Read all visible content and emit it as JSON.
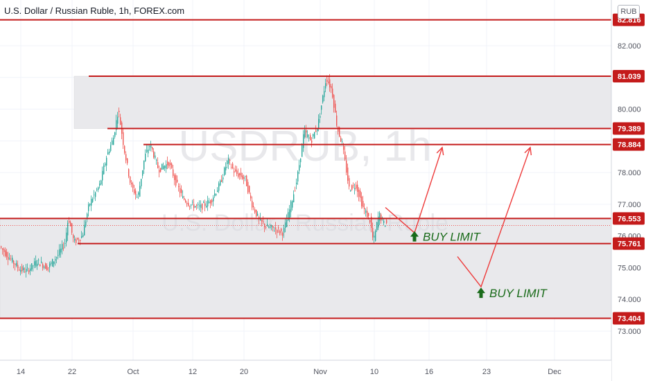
{
  "header": {
    "title": "U.S. Dollar / Russian Ruble, 1h, FOREX.com",
    "currency": "RUB"
  },
  "watermark": {
    "symbol": "USDRUB, 1h",
    "name": "U.S. Dollar / Russian Ruble"
  },
  "colors": {
    "level_line": "#c41b1b",
    "level_label_bg": "#c41b1b",
    "zone_fill": "#e9e9ec",
    "candle_up": "#26a69a",
    "candle_down": "#ef5350",
    "arrow": "#ee3a3a",
    "buy_label": "#1a6b1a",
    "grid": "#f0f3fa",
    "axis_text": "#50535e"
  },
  "chart_data": {
    "type": "candlestick",
    "symbol": "USDRUB",
    "timeframe": "1h",
    "source": "FOREX.com",
    "y_axis": {
      "ticks": [
        "82.000",
        "81.000",
        "80.000",
        "79.000",
        "78.000",
        "77.000",
        "76.000",
        "75.000",
        "74.000",
        "73.000"
      ],
      "range": [
        72.0,
        83.0
      ]
    },
    "x_axis": {
      "ticks": [
        "14",
        "22",
        "Oct",
        "12",
        "20",
        "Nov",
        "10",
        "16",
        "23",
        "Dec"
      ]
    },
    "levels": [
      {
        "value": "82.816",
        "label": "82.816"
      },
      {
        "value": "81.039",
        "label": "81.039"
      },
      {
        "value": "79.389",
        "label": "79.389"
      },
      {
        "value": "78.884",
        "label": "78.884"
      },
      {
        "value": "76.553",
        "label": "76.553"
      },
      {
        "value": "75.761",
        "label": "75.761"
      },
      {
        "value": "73.404",
        "label": "73.404"
      }
    ],
    "zones": [
      {
        "from": 79.389,
        "to": 81.039
      },
      {
        "from": 73.404,
        "to": 76.553
      }
    ],
    "price_series_trace": [
      [
        0,
        75.7
      ],
      [
        15,
        75.3
      ],
      [
        30,
        74.95
      ],
      [
        40,
        74.9
      ],
      [
        55,
        75.2
      ],
      [
        70,
        75.0
      ],
      [
        85,
        75.4
      ],
      [
        95,
        75.8
      ],
      [
        100,
        76.6
      ],
      [
        108,
        75.8
      ],
      [
        120,
        76.0
      ],
      [
        130,
        77.0
      ],
      [
        145,
        77.6
      ],
      [
        155,
        78.5
      ],
      [
        165,
        79.1
      ],
      [
        172,
        80.0
      ],
      [
        180,
        78.8
      ],
      [
        190,
        77.6
      ],
      [
        200,
        77.2
      ],
      [
        210,
        78.5
      ],
      [
        218,
        78.9
      ],
      [
        230,
        78.1
      ],
      [
        245,
        78.3
      ],
      [
        255,
        77.7
      ],
      [
        265,
        77.2
      ],
      [
        275,
        77.0
      ],
      [
        290,
        76.9
      ],
      [
        305,
        77.1
      ],
      [
        318,
        77.6
      ],
      [
        330,
        78.4
      ],
      [
        340,
        78.0
      ],
      [
        355,
        77.8
      ],
      [
        365,
        77.0
      ],
      [
        375,
        76.5
      ],
      [
        385,
        76.3
      ],
      [
        400,
        76.2
      ],
      [
        410,
        76.1
      ],
      [
        420,
        76.9
      ],
      [
        430,
        77.8
      ],
      [
        440,
        79.3
      ],
      [
        450,
        79.0
      ],
      [
        460,
        79.5
      ],
      [
        468,
        80.5
      ],
      [
        472,
        81.0
      ],
      [
        480,
        80.6
      ],
      [
        488,
        79.4
      ],
      [
        495,
        78.9
      ],
      [
        505,
        77.5
      ],
      [
        515,
        77.6
      ],
      [
        525,
        76.9
      ],
      [
        535,
        76.5
      ],
      [
        540,
        75.8
      ],
      [
        548,
        76.7
      ],
      [
        555,
        76.4
      ]
    ],
    "annotations": [
      {
        "text": "BUY LIMIT",
        "price": 75.98
      },
      {
        "text": "BUY LIMIT",
        "price": 74.2
      }
    ],
    "projections": [
      {
        "from_price": 76.9,
        "via_price": 76.1,
        "to_price": 78.9
      },
      {
        "from_price": 75.35,
        "via_price": 74.4,
        "to_price": 78.9
      }
    ]
  }
}
